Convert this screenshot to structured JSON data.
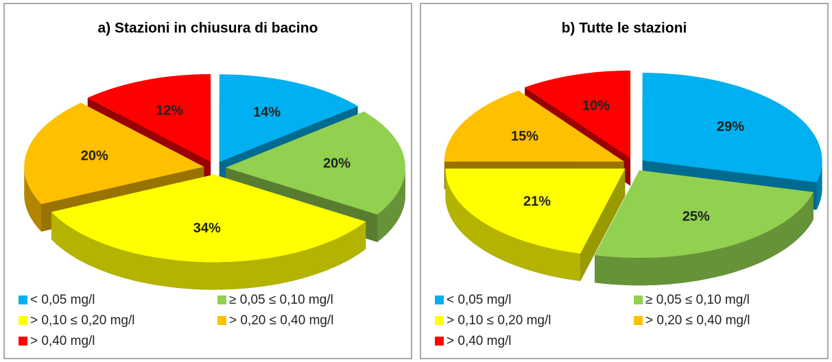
{
  "chart_data": [
    {
      "type": "pie",
      "title": "a) Stazioni in chiusura di bacino",
      "categories": [
        "< 0,05 mg/l",
        "≥ 0,05 ≤ 0,10 mg/l",
        "> 0,10  ≤ 0,20 mg/l",
        "> 0,20  ≤ 0,40 mg/l",
        "> 0,40 mg/l"
      ],
      "values": [
        14,
        20,
        34,
        20,
        12
      ],
      "value_labels": [
        "14%",
        "20%",
        "34%",
        "20%",
        "12%"
      ],
      "colors": [
        "#00b0f0",
        "#92d050",
        "#ffff00",
        "#ffc000",
        "#ff0000"
      ]
    },
    {
      "type": "pie",
      "title": "b) Tutte le stazioni",
      "categories": [
        "< 0,05 mg/l",
        "≥ 0,05 ≤ 0,10 mg/l",
        "> 0,10  ≤ 0,20 mg/l",
        "> 0,20  ≤ 0,40 mg/l",
        "> 0,40 mg/l"
      ],
      "values": [
        29,
        25,
        21,
        15,
        10
      ],
      "value_labels": [
        "29%",
        "25%",
        "21%",
        "15%",
        "10%"
      ],
      "colors": [
        "#00b0f0",
        "#92d050",
        "#ffff00",
        "#ffc000",
        "#ff0000"
      ]
    }
  ]
}
